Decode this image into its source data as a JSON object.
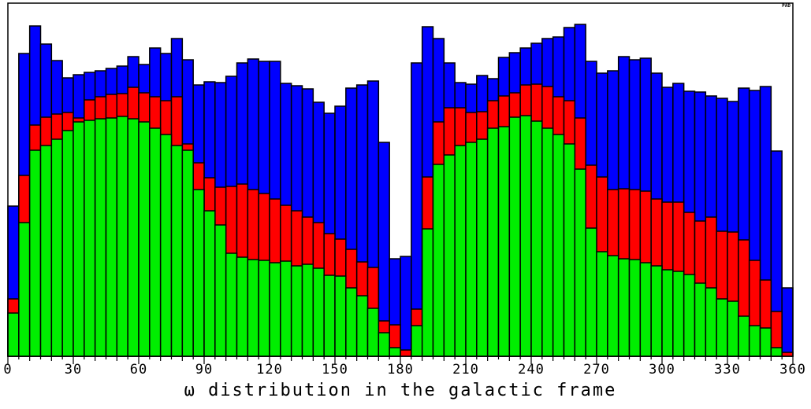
{
  "chart_data": {
    "type": "bar",
    "stacked": true,
    "xlabel": "ω distribution in the galactic frame",
    "xlim": [
      0,
      360
    ],
    "bin_width": 5,
    "x_ticks": [
      0,
      30,
      60,
      90,
      120,
      150,
      180,
      210,
      240,
      270,
      300,
      330,
      360
    ],
    "corner_tag": "PAD",
    "colors": {
      "green": "#00ee00",
      "red": "#ff0000",
      "blue": "#0000ff",
      "edge": "#000000"
    },
    "bin_starts": [
      0,
      5,
      10,
      15,
      20,
      25,
      30,
      35,
      40,
      45,
      50,
      55,
      60,
      65,
      70,
      75,
      80,
      85,
      90,
      95,
      100,
      105,
      110,
      115,
      120,
      125,
      130,
      135,
      140,
      145,
      150,
      155,
      160,
      165,
      170,
      175,
      180,
      185,
      190,
      195,
      200,
      205,
      210,
      215,
      220,
      225,
      230,
      235,
      240,
      245,
      250,
      255,
      260,
      265,
      270,
      275,
      280,
      285,
      290,
      295,
      300,
      305,
      310,
      315,
      320,
      325,
      330,
      335,
      340,
      345,
      350,
      355
    ],
    "series": [
      {
        "color_key": "green",
        "values": [
          55,
          170,
          262,
          268,
          276,
          287,
          298,
          300,
          302,
          303,
          305,
          302,
          298,
          290,
          282,
          268,
          262,
          212,
          185,
          167,
          131,
          126,
          123,
          122,
          119,
          121,
          115,
          117,
          112,
          103,
          102,
          87,
          77,
          61,
          30,
          11,
          0,
          39,
          162,
          244,
          256,
          268,
          272,
          276,
          290,
          292,
          304,
          306,
          299,
          290,
          282,
          270,
          238,
          163,
          133,
          128,
          124,
          123,
          119,
          115,
          110,
          108,
          104,
          93,
          87,
          73,
          70,
          51,
          39,
          36,
          11,
          0
        ],
        "name": ""
      },
      {
        "color_key": "red",
        "values": [
          73,
          230,
          294,
          304,
          308,
          310,
          303,
          326,
          330,
          333,
          334,
          342,
          335,
          330,
          325,
          330,
          270,
          246,
          227,
          215,
          216,
          219,
          212,
          207,
          200,
          192,
          185,
          177,
          170,
          156,
          149,
          136,
          120,
          113,
          45,
          40,
          8,
          60,
          228,
          298,
          316,
          316,
          310,
          311,
          325,
          331,
          335,
          345,
          346,
          343,
          330,
          325,
          303,
          243,
          228,
          212,
          213,
          212,
          210,
          200,
          196,
          196,
          183,
          172,
          177,
          159,
          158,
          148,
          122,
          97,
          57,
          5
        ],
        "name": ""
      },
      {
        "color_key": "blue",
        "values": [
          191,
          385,
          420,
          397,
          376,
          354,
          358,
          361,
          363,
          366,
          369,
          381,
          371,
          392,
          385,
          404,
          377,
          345,
          349,
          348,
          356,
          373,
          378,
          375,
          375,
          347,
          344,
          340,
          323,
          309,
          318,
          341,
          345,
          350,
          272,
          124,
          127,
          373,
          419,
          404,
          373,
          348,
          346,
          357,
          353,
          380,
          386,
          392,
          398,
          404,
          406,
          418,
          422,
          375,
          360,
          363,
          381,
          377,
          379,
          360,
          342,
          347,
          337,
          336,
          331,
          328,
          324,
          341,
          338,
          343,
          261,
          87
        ],
        "name": ""
      }
    ]
  }
}
